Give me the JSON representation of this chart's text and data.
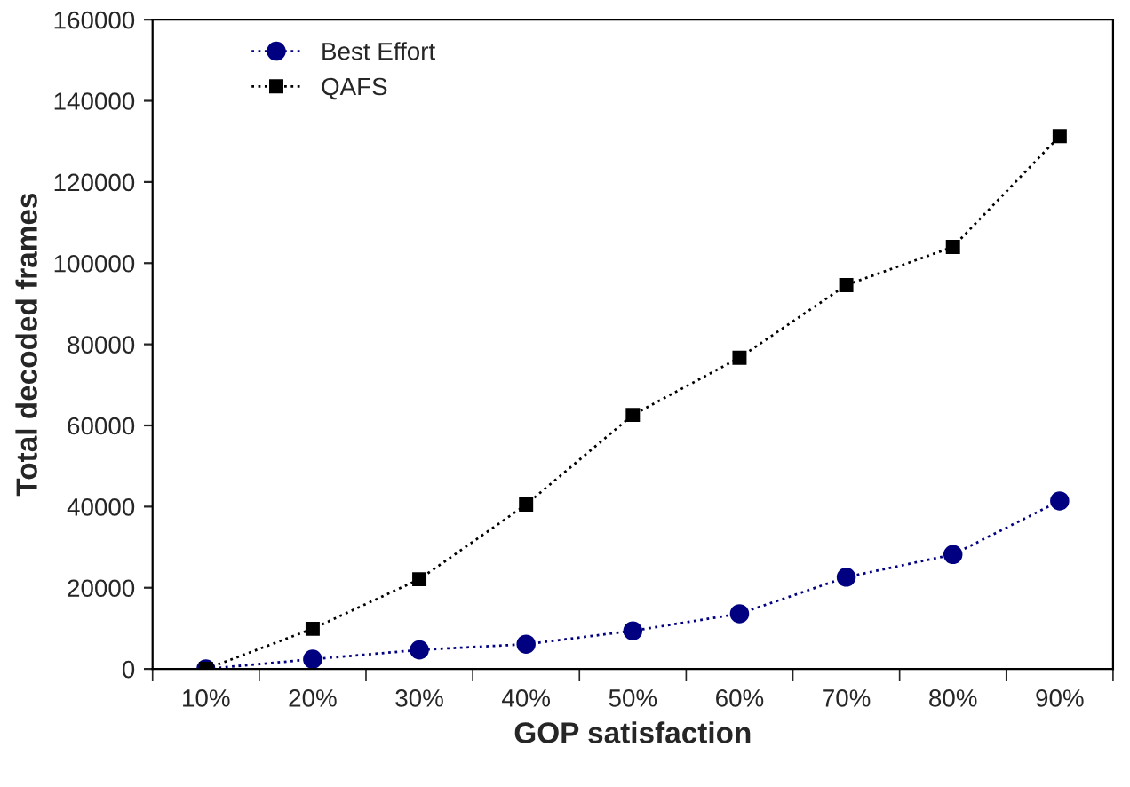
{
  "chart_data": {
    "type": "line",
    "xlabel": "GOP satisfaction",
    "ylabel": "Total decoded frames",
    "categories": [
      "10%",
      "20%",
      "30%",
      "40%",
      "50%",
      "60%",
      "70%",
      "80%",
      "90%"
    ],
    "series": [
      {
        "name": "Best Effort",
        "color": "#000080",
        "marker": "circle",
        "values": [
          0,
          2400,
          4700,
          6100,
          9400,
          13600,
          22600,
          28200,
          41400
        ]
      },
      {
        "name": "QAFS",
        "color": "#000000",
        "marker": "square",
        "values": [
          0,
          9900,
          22100,
          40500,
          62600,
          76700,
          94600,
          104000,
          131300
        ]
      }
    ],
    "ylim": [
      0,
      160000
    ],
    "yticks": [
      0,
      20000,
      40000,
      60000,
      80000,
      100000,
      120000,
      140000,
      160000
    ],
    "line_style": "dotted",
    "legend": "top left",
    "grid": false
  }
}
